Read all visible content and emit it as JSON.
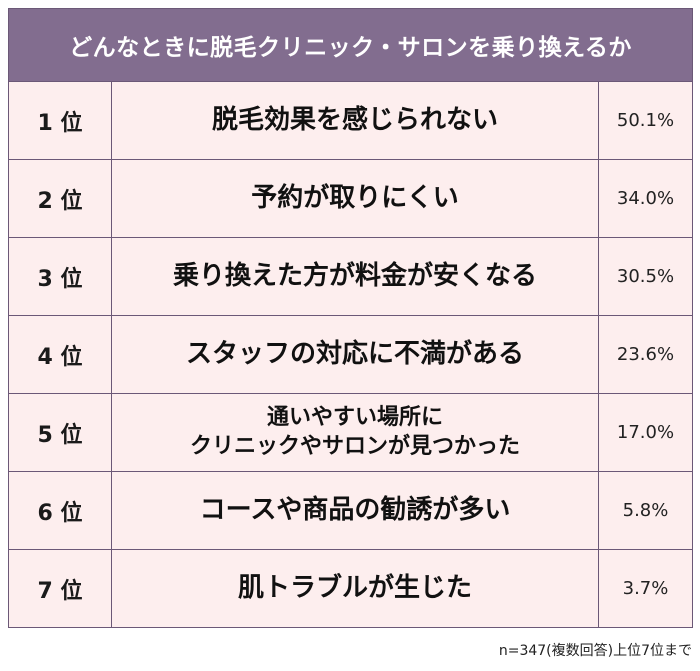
{
  "chart_data": {
    "type": "table",
    "title": "どんなときに脱毛クリニック・サロンを乗り換えるか",
    "rows": [
      {
        "rank": "1 位",
        "reason": "脱毛効果を感じられない",
        "value": 50.1,
        "value_label": "50.1%"
      },
      {
        "rank": "2 位",
        "reason": "予約が取りにくい",
        "value": 34.0,
        "value_label": "34.0%"
      },
      {
        "rank": "3 位",
        "reason": "乗り換えた方が料金が安くなる",
        "value": 30.5,
        "value_label": "30.5%"
      },
      {
        "rank": "4 位",
        "reason": "スタッフの対応に不満がある",
        "value": 23.6,
        "value_label": "23.6%"
      },
      {
        "rank": "5 位",
        "reason": "通いやすい場所に\nクリニックやサロンが見つかった",
        "value": 17.0,
        "value_label": "17.0%"
      },
      {
        "rank": "6 位",
        "reason": "コースや商品の勧誘が多い",
        "value": 5.8,
        "value_label": "5.8%"
      },
      {
        "rank": "7 位",
        "reason": "肌トラブルが生じた",
        "value": 3.7,
        "value_label": "3.7%"
      }
    ],
    "note": "n=347(複数回答)上位7位まで"
  },
  "colors": {
    "header_bg": "#826d8f",
    "row_bg": "#fdeeee",
    "border": "#6b5877"
  }
}
